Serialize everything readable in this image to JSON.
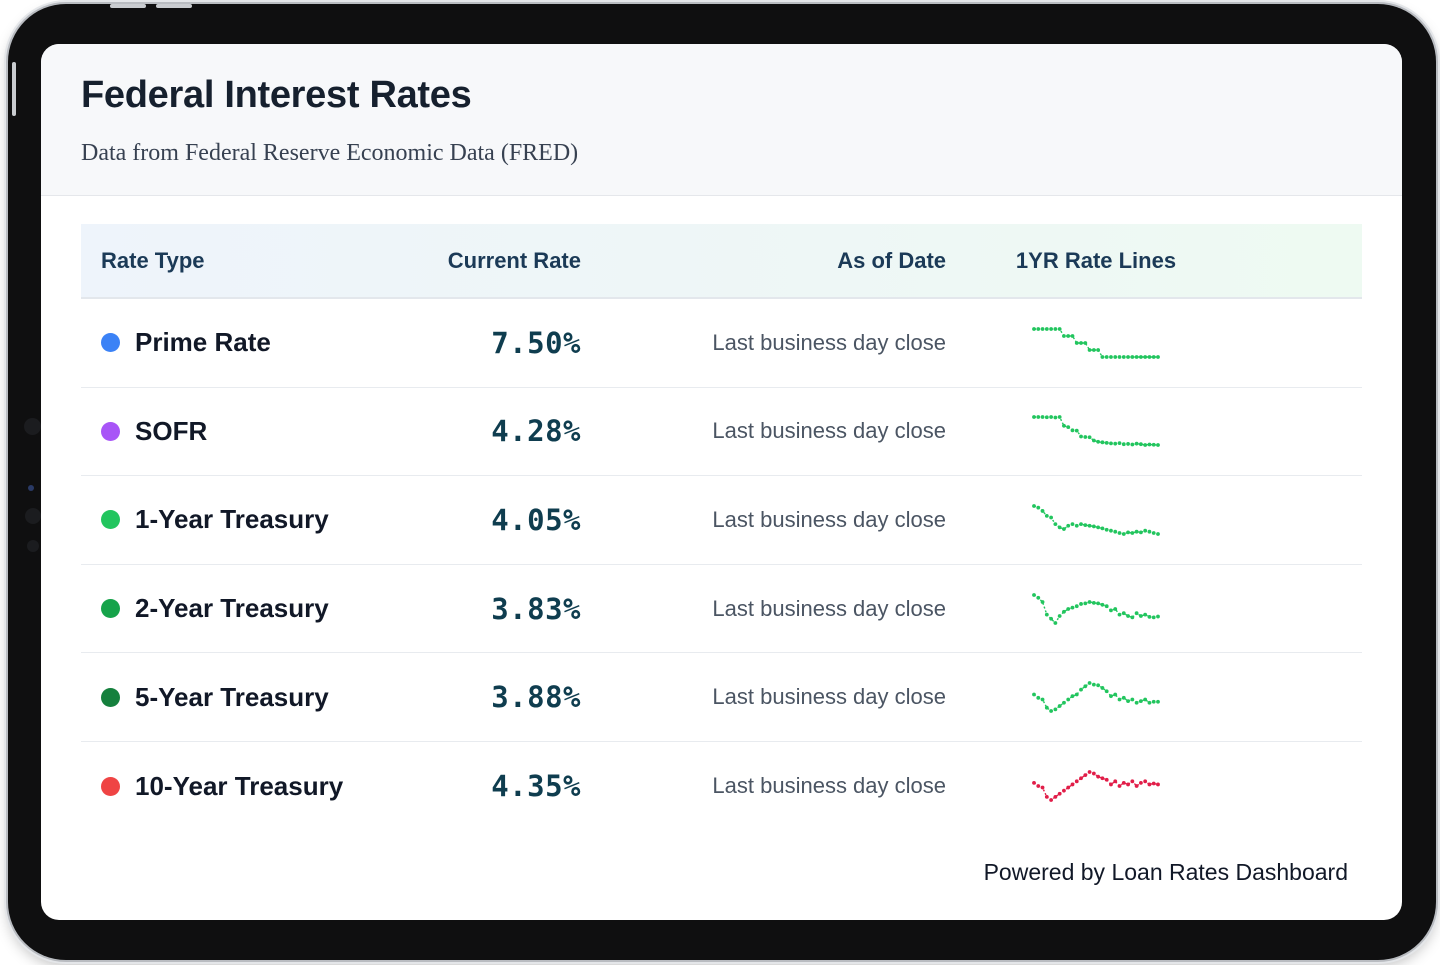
{
  "header": {
    "title": "Federal Interest Rates",
    "subtitle": "Data from Federal Reserve Economic Data (FRED)"
  },
  "table": {
    "columns": [
      "Rate Type",
      "Current Rate",
      "As of Date",
      "1YR Rate Lines"
    ],
    "rows": [
      {
        "name": "Prime Rate",
        "rate": "7.50%",
        "as_of": "Last business day close",
        "dot_color": "#3b82f6",
        "spark_color": "#22c55e",
        "trend": [
          8.5,
          8.5,
          8.5,
          8.5,
          8.5,
          8.5,
          8.5,
          8.25,
          8.25,
          8.25,
          8.0,
          8.0,
          8.0,
          7.75,
          7.75,
          7.75,
          7.5,
          7.5,
          7.5,
          7.5,
          7.5,
          7.5,
          7.5,
          7.5,
          7.5,
          7.5,
          7.5,
          7.5,
          7.5,
          7.5
        ]
      },
      {
        "name": "SOFR",
        "rate": "4.28%",
        "as_of": "Last business day close",
        "dot_color": "#a855f7",
        "spark_color": "#22c55e",
        "trend": [
          5.33,
          5.33,
          5.33,
          5.32,
          5.33,
          5.31,
          5.33,
          5.0,
          4.95,
          4.83,
          4.82,
          4.6,
          4.58,
          4.57,
          4.45,
          4.4,
          4.38,
          4.36,
          4.34,
          4.33,
          4.35,
          4.31,
          4.32,
          4.3,
          4.33,
          4.31,
          4.28,
          4.3,
          4.29,
          4.28
        ]
      },
      {
        "name": "1-Year Treasury",
        "rate": "4.05%",
        "as_of": "Last business day close",
        "dot_color": "#22c55e",
        "spark_color": "#22c55e",
        "trend": [
          4.9,
          4.85,
          4.75,
          4.6,
          4.55,
          4.35,
          4.25,
          4.2,
          4.3,
          4.35,
          4.3,
          4.35,
          4.32,
          4.3,
          4.28,
          4.25,
          4.22,
          4.18,
          4.15,
          4.12,
          4.08,
          4.05,
          4.1,
          4.08,
          4.12,
          4.1,
          4.15,
          4.12,
          4.08,
          4.05
        ]
      },
      {
        "name": "2-Year Treasury",
        "rate": "3.83%",
        "as_of": "Last business day close",
        "dot_color": "#16a34a",
        "spark_color": "#22c55e",
        "trend": [
          4.6,
          4.5,
          4.35,
          3.9,
          3.75,
          3.6,
          3.85,
          4.0,
          4.1,
          4.15,
          4.2,
          4.28,
          4.3,
          4.35,
          4.32,
          4.3,
          4.25,
          4.2,
          4.05,
          4.1,
          3.9,
          3.95,
          3.85,
          3.8,
          3.95,
          3.85,
          3.9,
          3.82,
          3.8,
          3.83
        ]
      },
      {
        "name": "5-Year Treasury",
        "rate": "3.88%",
        "as_of": "Last business day close",
        "dot_color": "#15803d",
        "spark_color": "#22c55e",
        "trend": [
          4.1,
          4.0,
          3.95,
          3.7,
          3.6,
          3.65,
          3.75,
          3.85,
          3.95,
          4.05,
          4.1,
          4.25,
          4.35,
          4.45,
          4.4,
          4.38,
          4.3,
          4.2,
          4.05,
          4.1,
          3.95,
          4.0,
          3.9,
          3.95,
          3.85,
          3.9,
          3.95,
          3.85,
          3.88,
          3.88
        ]
      },
      {
        "name": "10-Year Treasury",
        "rate": "4.35%",
        "as_of": "Last business day close",
        "dot_color": "#ef4444",
        "spark_color": "#e11d48",
        "trend": [
          4.4,
          4.3,
          4.25,
          3.95,
          3.85,
          3.95,
          4.05,
          4.15,
          4.25,
          4.35,
          4.45,
          4.55,
          4.65,
          4.75,
          4.7,
          4.6,
          4.55,
          4.5,
          4.35,
          4.45,
          4.3,
          4.4,
          4.35,
          4.45,
          4.3,
          4.4,
          4.45,
          4.35,
          4.38,
          4.35
        ]
      }
    ]
  },
  "footer": {
    "text": "Powered by Loan Rates Dashboard"
  }
}
